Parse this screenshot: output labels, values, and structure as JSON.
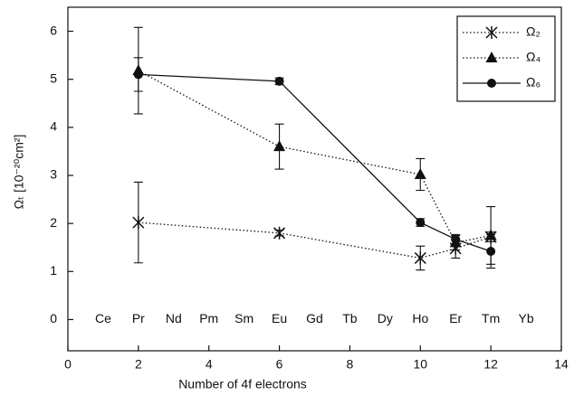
{
  "chart_data": {
    "type": "line",
    "x_label": "Number of 4f electrons",
    "y_label": "Ωₜ [10⁻²⁰cm²]",
    "xlim": [
      0,
      14
    ],
    "xticks": [
      0,
      2,
      4,
      6,
      8,
      10,
      12,
      14
    ],
    "ylim": [
      -0.65,
      6.5
    ],
    "yticks": [
      0,
      1,
      2,
      3,
      4,
      5,
      6
    ],
    "legend_position": "upper right",
    "annotations": [
      {
        "text": "Ce",
        "x": 1,
        "y": 0
      },
      {
        "text": "Pr",
        "x": 2,
        "y": 0
      },
      {
        "text": "Nd",
        "x": 3,
        "y": 0
      },
      {
        "text": "Pm",
        "x": 4,
        "y": 0
      },
      {
        "text": "Sm",
        "x": 5,
        "y": 0
      },
      {
        "text": "Eu",
        "x": 6,
        "y": 0
      },
      {
        "text": "Gd",
        "x": 7,
        "y": 0
      },
      {
        "text": "Tb",
        "x": 8,
        "y": 0
      },
      {
        "text": "Dy",
        "x": 9,
        "y": 0
      },
      {
        "text": "Ho",
        "x": 10,
        "y": 0
      },
      {
        "text": "Er",
        "x": 11,
        "y": 0
      },
      {
        "text": "Tm",
        "x": 12,
        "y": 0
      },
      {
        "text": "Yb",
        "x": 13,
        "y": 0
      }
    ],
    "series": [
      {
        "name": "Ω₂",
        "color": "#111111",
        "line_style": "dotted",
        "marker": "asterisk",
        "x": [
          2,
          6,
          10,
          11,
          12
        ],
        "values": [
          2.02,
          1.8,
          1.28,
          1.48,
          1.72
        ],
        "errors": [
          0.84,
          0.06,
          0.25,
          0.2,
          0.1
        ]
      },
      {
        "name": "Ω₄",
        "color": "#111111",
        "line_style": "dotted",
        "marker": "triangle",
        "x": [
          2,
          6,
          10,
          11,
          12
        ],
        "values": [
          5.18,
          3.6,
          3.02,
          1.6,
          1.75
        ],
        "errors": [
          0.9,
          0.47,
          0.33,
          0.15,
          0.6
        ]
      },
      {
        "name": "Ω₆",
        "color": "#111111",
        "line_style": "solid",
        "marker": "circle",
        "x": [
          2,
          6,
          10,
          11,
          12
        ],
        "values": [
          5.1,
          4.96,
          2.02,
          1.67,
          1.42
        ],
        "errors": [
          0.35,
          0.07,
          0.08,
          0.1,
          0.35
        ]
      }
    ]
  }
}
